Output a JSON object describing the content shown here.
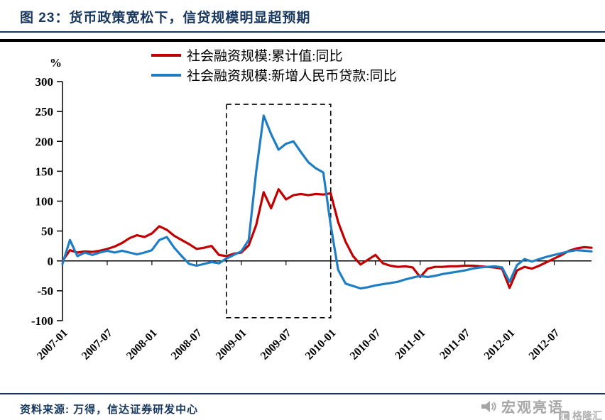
{
  "title": "图 23：货币政策宽松下，信贷规模明显超预期",
  "source": "资料来源: 万得，信达证券研发中心",
  "watermark": {
    "name": "宏观亮语",
    "logo_text": "格隆汇",
    "logo_icon_char": "汇"
  },
  "colors": {
    "navy": "#17375E",
    "red": "#C00000",
    "blue": "#1F7DC4",
    "axis": "#000000",
    "watermark_grey": "#A6A6A6"
  },
  "chart_data": {
    "type": "line",
    "title": "",
    "y_unit": "%",
    "ylim": [
      -100,
      300
    ],
    "yticks": [
      300,
      250,
      200,
      150,
      100,
      50,
      0,
      -50,
      -100
    ],
    "grid": false,
    "legend_position": "top",
    "x_tick_every": 6,
    "x": [
      "2007-01",
      "2007-02",
      "2007-03",
      "2007-04",
      "2007-05",
      "2007-06",
      "2007-07",
      "2007-08",
      "2007-09",
      "2007-10",
      "2007-11",
      "2007-12",
      "2008-01",
      "2008-02",
      "2008-03",
      "2008-04",
      "2008-05",
      "2008-06",
      "2008-07",
      "2008-08",
      "2008-09",
      "2008-10",
      "2008-11",
      "2008-12",
      "2009-01",
      "2009-02",
      "2009-03",
      "2009-04",
      "2009-05",
      "2009-06",
      "2009-07",
      "2009-08",
      "2009-09",
      "2009-10",
      "2009-11",
      "2009-12",
      "2010-01",
      "2010-02",
      "2010-03",
      "2010-04",
      "2010-05",
      "2010-06",
      "2010-07",
      "2010-08",
      "2010-09",
      "2010-10",
      "2010-11",
      "2010-12",
      "2011-01",
      "2011-02",
      "2011-03",
      "2011-04",
      "2011-05",
      "2011-06",
      "2011-07",
      "2011-08",
      "2011-09",
      "2011-10",
      "2011-11",
      "2011-12",
      "2012-01",
      "2012-02",
      "2012-03",
      "2012-04",
      "2012-05",
      "2012-06",
      "2012-07",
      "2012-08",
      "2012-09",
      "2012-10",
      "2012-11",
      "2012-12"
    ],
    "series": [
      {
        "name": "社会融资规模:累计值:同比",
        "color": "#C00000",
        "values": [
          0,
          18,
          14,
          16,
          15,
          17,
          20,
          24,
          30,
          38,
          43,
          40,
          46,
          58,
          52,
          42,
          35,
          28,
          20,
          22,
          25,
          10,
          8,
          12,
          14,
          26,
          60,
          115,
          88,
          120,
          103,
          110,
          112,
          110,
          112,
          111,
          113,
          65,
          32,
          8,
          -6,
          2,
          10,
          -4,
          -8,
          -10,
          -9,
          -11,
          -27,
          -13,
          -10,
          -10,
          -9,
          -9,
          -8,
          -8,
          -9,
          -10,
          -11,
          -13,
          -45,
          -16,
          -10,
          -13,
          -8,
          -2,
          4,
          10,
          17,
          21,
          23,
          22
        ]
      },
      {
        "name": "社会融资规模:新增人民币贷款:同比",
        "color": "#1F7DC4",
        "values": [
          -5,
          35,
          8,
          14,
          10,
          14,
          17,
          14,
          17,
          14,
          11,
          14,
          18,
          35,
          40,
          22,
          8,
          -5,
          -8,
          -5,
          -2,
          -4,
          4,
          10,
          16,
          35,
          150,
          243,
          212,
          186,
          196,
          200,
          182,
          165,
          155,
          148,
          60,
          -15,
          -38,
          -42,
          -46,
          -44,
          -41,
          -39,
          -37,
          -35,
          -31,
          -28,
          -25,
          -27,
          -25,
          -22,
          -20,
          -18,
          -16,
          -13,
          -11,
          -10,
          -9,
          -11,
          -35,
          -7,
          3,
          -1,
          3,
          7,
          10,
          13,
          16,
          18,
          17,
          16
        ]
      }
    ],
    "highlight_box": {
      "x_from": "2008-11",
      "x_to": "2010-01",
      "y_from": -95,
      "y_to": 262,
      "style": "dashed"
    }
  }
}
